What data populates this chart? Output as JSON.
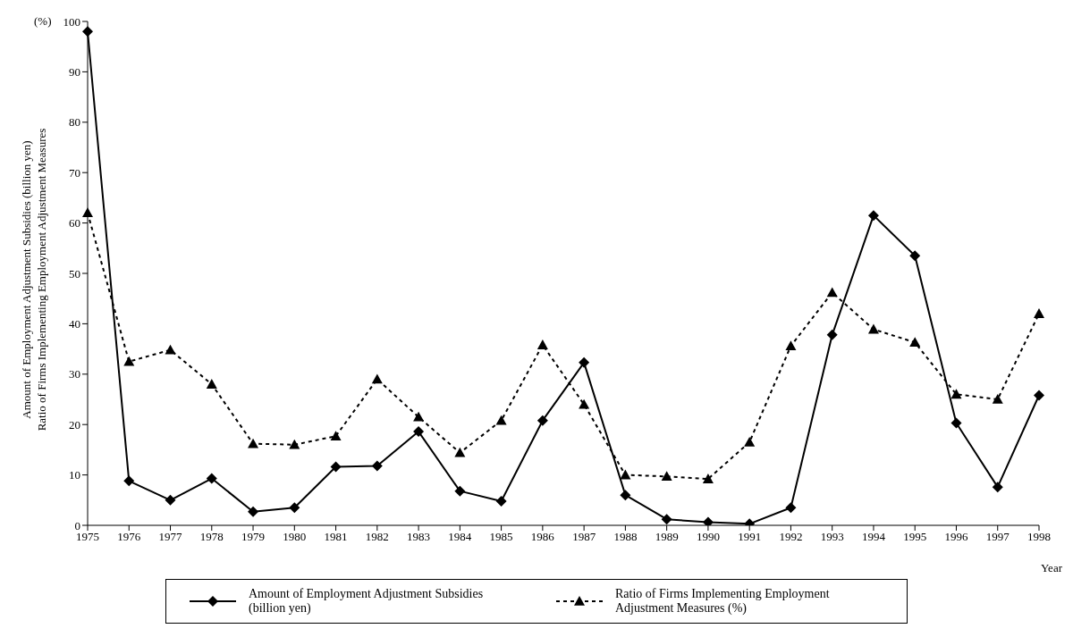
{
  "chart_data": {
    "type": "line",
    "categories": [
      "1975",
      "1976",
      "1977",
      "1978",
      "1979",
      "1980",
      "1981",
      "1982",
      "1983",
      "1984",
      "1985",
      "1986",
      "1987",
      "1988",
      "1989",
      "1990",
      "1991",
      "1992",
      "1993",
      "1994",
      "1995",
      "1996",
      "1997",
      "1998"
    ],
    "series": [
      {
        "name": "Amount of Employment Adjustment Subsidies (billion yen)",
        "color": "#000000",
        "marker": "diamond",
        "line_style": "solid",
        "values": [
          98,
          8.8,
          5,
          9.3,
          2.7,
          3.5,
          11.6,
          11.8,
          18.6,
          6.8,
          4.8,
          20.8,
          32.3,
          6,
          1.2,
          0.6,
          0.3,
          3.5,
          37.8,
          61.5,
          53.5,
          20.3,
          7.6,
          25.8
        ]
      },
      {
        "name": "Ratio of Firms Implementing Employment Adjustment Measures (%)",
        "color": "#000000",
        "marker": "triangle",
        "line_style": "dashed",
        "values": [
          62,
          32.5,
          34.8,
          28,
          16.2,
          16,
          17.7,
          29,
          21.5,
          14.4,
          20.8,
          35.8,
          24,
          10,
          9.7,
          9.2,
          16.5,
          35.6,
          46.2,
          38.9,
          36.3,
          26,
          25,
          42
        ]
      }
    ],
    "xlabel": "Year",
    "ylabel": "Amount of Employment Adjustment Subsidies (billion yen)\nRatio of Firms Implementing Employment Adjustment Measures",
    "annotations": [
      "(%)"
    ],
    "ylim": [
      0,
      100
    ],
    "yticks": [
      0,
      10,
      20,
      30,
      40,
      50,
      60,
      70,
      80,
      90,
      100
    ],
    "grid": false,
    "legend": "bottom"
  }
}
